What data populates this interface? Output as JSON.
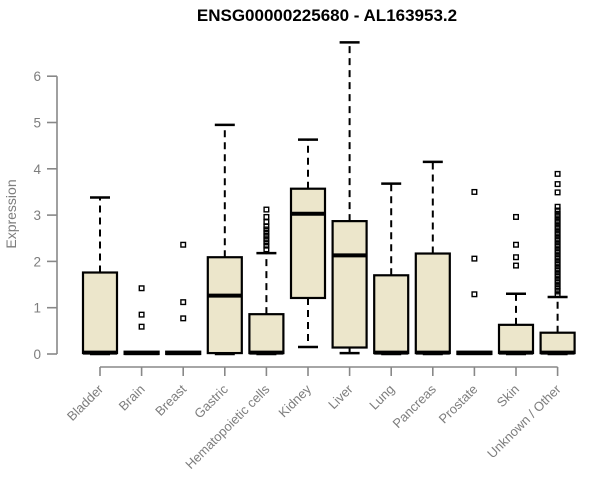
{
  "chart_data": {
    "type": "boxplot",
    "title": "ENSG00000225680 - AL163953.2",
    "xlabel": "",
    "ylabel": "Expression",
    "ylim": [
      0,
      6
    ],
    "yticks": [
      0,
      1,
      2,
      3,
      4,
      5,
      6
    ],
    "grid": false,
    "legend": "none",
    "box_fill": "#ece6cb",
    "box_border": "#000000",
    "median_color": "#000000",
    "whisker_color": "#000000",
    "axis_color": "#888888",
    "tick_label_color": "#7d7d7d",
    "title_color": "#000000",
    "categories": [
      "Bladder",
      "Brain",
      "Breast",
      "Gastric",
      "Hematopoietic cells",
      "Kidney",
      "Liver",
      "Lung",
      "Pancreas",
      "Prostate",
      "Skin",
      "Unknown / Other"
    ],
    "series": [
      {
        "category": "Bladder",
        "whisker_low": 0,
        "q1": 0.02,
        "median": 0.03,
        "q3": 1.76,
        "whisker_high": 3.38,
        "outliers": []
      },
      {
        "category": "Brain",
        "whisker_low": 0,
        "q1": 0,
        "median": 0.02,
        "q3": 0.05,
        "whisker_high": 0.05,
        "outliers": [
          1.42,
          0.85,
          0.59
        ]
      },
      {
        "category": "Breast",
        "whisker_low": 0,
        "q1": 0,
        "median": 0.02,
        "q3": 0.05,
        "whisker_high": 0.05,
        "outliers": [
          2.36,
          1.12,
          0.77
        ]
      },
      {
        "category": "Gastric",
        "whisker_low": 0,
        "q1": 0.02,
        "median": 1.26,
        "q3": 2.09,
        "whisker_high": 4.95,
        "outliers": []
      },
      {
        "category": "Hematopoietic cells",
        "whisker_low": 0,
        "q1": 0.02,
        "median": 0.03,
        "q3": 0.86,
        "whisker_high": 2.18,
        "outliers": [
          3.12,
          2.96,
          2.85,
          2.76,
          2.69,
          2.62,
          2.55,
          2.48,
          2.41,
          2.34,
          2.26
        ]
      },
      {
        "category": "Kidney",
        "whisker_low": 0.15,
        "q1": 1.21,
        "median": 3.03,
        "q3": 3.57,
        "whisker_high": 4.63,
        "outliers": []
      },
      {
        "category": "Liver",
        "whisker_low": 0.02,
        "q1": 0.14,
        "median": 2.13,
        "q3": 2.87,
        "whisker_high": 6.73,
        "outliers": []
      },
      {
        "category": "Lung",
        "whisker_low": 0,
        "q1": 0.02,
        "median": 0.03,
        "q3": 1.7,
        "whisker_high": 3.68,
        "outliers": []
      },
      {
        "category": "Pancreas",
        "whisker_low": 0,
        "q1": 0.02,
        "median": 0.03,
        "q3": 2.17,
        "whisker_high": 4.15,
        "outliers": []
      },
      {
        "category": "Prostate",
        "whisker_low": 0,
        "q1": 0,
        "median": 0.02,
        "q3": 0.05,
        "whisker_high": 0.05,
        "outliers": [
          3.5,
          2.06,
          1.29
        ]
      },
      {
        "category": "Skin",
        "whisker_low": 0,
        "q1": 0.02,
        "median": 0.03,
        "q3": 0.63,
        "whisker_high": 1.3,
        "outliers": [
          2.96,
          2.36,
          2.09,
          1.91
        ]
      },
      {
        "category": "Unknown / Other",
        "whisker_low": 0,
        "q1": 0.02,
        "median": 0.03,
        "q3": 0.46,
        "whisker_high": 1.23,
        "outliers": [
          3.89,
          3.67,
          3.49,
          3.18,
          3.1,
          3.03,
          2.97,
          2.9,
          2.84,
          2.77,
          2.71,
          2.64,
          2.58,
          2.51,
          2.45,
          2.38,
          2.32,
          2.25,
          2.19,
          2.12,
          2.06,
          1.99,
          1.93,
          1.86,
          1.8,
          1.73,
          1.67,
          1.6,
          1.54,
          1.47,
          1.41,
          1.35,
          1.28
        ]
      }
    ]
  }
}
